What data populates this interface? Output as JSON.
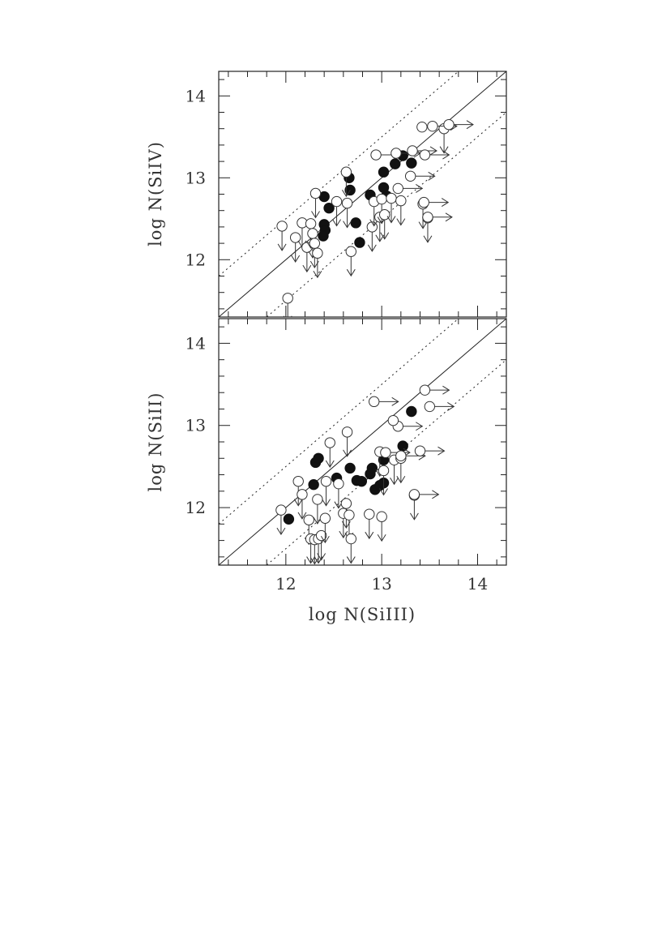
{
  "chart_data": [
    {
      "type": "scatter",
      "xlabel": "log  N(SiIII)",
      "ylabel": "log  N(SiIV)",
      "xlim": [
        11.3,
        14.3
      ],
      "ylim": [
        11.3,
        14.3
      ],
      "xticks": [
        "12",
        "13",
        "14"
      ],
      "yticks": [
        "12",
        "13",
        "14"
      ],
      "reference_lines": [
        {
          "style": "solid",
          "offset": 0.0
        },
        {
          "style": "dotted",
          "offset": 0.5
        },
        {
          "style": "dotted",
          "offset": -0.5
        }
      ],
      "series": [
        {
          "marker": "filled-circle",
          "points": [
            {
              "x": 12.4,
              "y": 12.77
            },
            {
              "x": 12.45,
              "y": 12.63
            },
            {
              "x": 12.4,
              "y": 12.43
            },
            {
              "x": 12.41,
              "y": 12.36
            },
            {
              "x": 12.39,
              "y": 12.29
            },
            {
              "x": 12.66,
              "y": 13.0
            },
            {
              "x": 12.67,
              "y": 12.85
            },
            {
              "x": 12.73,
              "y": 12.45
            },
            {
              "x": 12.77,
              "y": 12.21
            },
            {
              "x": 12.88,
              "y": 12.79
            },
            {
              "x": 13.02,
              "y": 13.07
            },
            {
              "x": 13.02,
              "y": 12.88
            },
            {
              "x": 13.05,
              "y": 12.78
            },
            {
              "x": 13.14,
              "y": 13.17
            },
            {
              "x": 13.22,
              "y": 13.27
            },
            {
              "x": 13.31,
              "y": 13.18
            }
          ]
        },
        {
          "marker": "open-circle",
          "points": [
            {
              "x": 11.96,
              "y": 12.41,
              "limit": "down"
            },
            {
              "x": 12.02,
              "y": 11.53,
              "limit": "down"
            },
            {
              "x": 12.1,
              "y": 12.27,
              "limit": "down"
            },
            {
              "x": 12.17,
              "y": 12.45,
              "limit": "down"
            },
            {
              "x": 12.22,
              "y": 12.15,
              "limit": "down"
            },
            {
              "x": 12.26,
              "y": 12.44,
              "limit": "down"
            },
            {
              "x": 12.28,
              "y": 12.32,
              "limit": "down"
            },
            {
              "x": 12.3,
              "y": 12.2,
              "limit": "down"
            },
            {
              "x": 12.33,
              "y": 12.08,
              "limit": "down"
            },
            {
              "x": 12.31,
              "y": 12.81,
              "limit": "down"
            },
            {
              "x": 12.53,
              "y": 12.71,
              "limit": "down"
            },
            {
              "x": 12.63,
              "y": 13.07,
              "limit": "down"
            },
            {
              "x": 12.64,
              "y": 12.69,
              "limit": "down"
            },
            {
              "x": 12.68,
              "y": 12.1,
              "limit": "down"
            },
            {
              "x": 12.9,
              "y": 12.4,
              "limit": "down"
            },
            {
              "x": 12.92,
              "y": 12.71,
              "limit": "down"
            },
            {
              "x": 12.98,
              "y": 12.52,
              "limit": "down"
            },
            {
              "x": 13.0,
              "y": 12.74,
              "limit": "down"
            },
            {
              "x": 13.03,
              "y": 12.55,
              "limit": "down"
            },
            {
              "x": 13.1,
              "y": 12.75,
              "limit": "down"
            },
            {
              "x": 13.2,
              "y": 12.72,
              "limit": "down"
            },
            {
              "x": 13.43,
              "y": 12.68,
              "limit": "down"
            },
            {
              "x": 13.48,
              "y": 12.51,
              "limit": "down"
            },
            {
              "x": 13.65,
              "y": 13.6,
              "limit": "down"
            },
            {
              "x": 12.94,
              "y": 13.28,
              "limit": "right"
            },
            {
              "x": 13.15,
              "y": 13.3,
              "limit": "right"
            },
            {
              "x": 13.17,
              "y": 12.87,
              "limit": "right"
            },
            {
              "x": 13.3,
              "y": 13.02,
              "limit": "right"
            },
            {
              "x": 13.32,
              "y": 13.33,
              "limit": "right"
            },
            {
              "x": 13.45,
              "y": 13.28,
              "limit": "right"
            },
            {
              "x": 13.53,
              "y": 13.63,
              "limit": "right"
            },
            {
              "x": 13.7,
              "y": 13.65,
              "limit": "right"
            },
            {
              "x": 13.44,
              "y": 12.7,
              "limit": "right"
            },
            {
              "x": 13.48,
              "y": 12.52,
              "limit": "right"
            },
            {
              "x": 13.42,
              "y": 13.62,
              "limit": "none"
            }
          ]
        }
      ]
    },
    {
      "type": "scatter",
      "xlabel": "log  N(SiIII)",
      "ylabel": "log  N(SiII)",
      "xlim": [
        11.3,
        14.3
      ],
      "ylim": [
        11.3,
        14.3
      ],
      "xticks": [
        "12",
        "13",
        "14"
      ],
      "yticks": [
        "12",
        "13",
        "14"
      ],
      "reference_lines": [
        {
          "style": "solid",
          "offset": 0.0
        },
        {
          "style": "dotted",
          "offset": 0.5
        },
        {
          "style": "dotted",
          "offset": -0.5
        }
      ],
      "series": [
        {
          "marker": "filled-circle",
          "points": [
            {
              "x": 12.03,
              "y": 11.86
            },
            {
              "x": 12.29,
              "y": 12.28
            },
            {
              "x": 12.31,
              "y": 12.55
            },
            {
              "x": 12.34,
              "y": 12.6
            },
            {
              "x": 12.53,
              "y": 12.36
            },
            {
              "x": 12.67,
              "y": 12.48
            },
            {
              "x": 12.74,
              "y": 12.33
            },
            {
              "x": 12.79,
              "y": 12.32
            },
            {
              "x": 12.88,
              "y": 12.41
            },
            {
              "x": 12.9,
              "y": 12.48
            },
            {
              "x": 12.93,
              "y": 12.22
            },
            {
              "x": 12.98,
              "y": 12.27
            },
            {
              "x": 13.02,
              "y": 12.3
            },
            {
              "x": 13.02,
              "y": 12.58
            },
            {
              "x": 13.22,
              "y": 12.75
            },
            {
              "x": 13.31,
              "y": 13.17
            }
          ]
        },
        {
          "marker": "open-circle",
          "points": [
            {
              "x": 11.95,
              "y": 11.97,
              "limit": "down"
            },
            {
              "x": 12.13,
              "y": 12.32,
              "limit": "down"
            },
            {
              "x": 12.17,
              "y": 12.16,
              "limit": "down"
            },
            {
              "x": 12.24,
              "y": 11.85,
              "limit": "down"
            },
            {
              "x": 12.26,
              "y": 11.62,
              "limit": "down"
            },
            {
              "x": 12.3,
              "y": 11.61,
              "limit": "down"
            },
            {
              "x": 12.33,
              "y": 12.1,
              "limit": "down"
            },
            {
              "x": 12.34,
              "y": 11.62,
              "limit": "down"
            },
            {
              "x": 12.37,
              "y": 11.66,
              "limit": "down"
            },
            {
              "x": 12.41,
              "y": 11.87,
              "limit": "down"
            },
            {
              "x": 12.42,
              "y": 12.32,
              "limit": "down"
            },
            {
              "x": 12.46,
              "y": 12.79,
              "limit": "down"
            },
            {
              "x": 12.55,
              "y": 12.29,
              "limit": "down"
            },
            {
              "x": 12.6,
              "y": 11.93,
              "limit": "down"
            },
            {
              "x": 12.63,
              "y": 12.05,
              "limit": "down"
            },
            {
              "x": 12.64,
              "y": 12.92,
              "limit": "down"
            },
            {
              "x": 12.66,
              "y": 11.91,
              "limit": "down"
            },
            {
              "x": 12.68,
              "y": 11.62,
              "limit": "down"
            },
            {
              "x": 12.87,
              "y": 11.92,
              "limit": "down"
            },
            {
              "x": 12.98,
              "y": 12.68,
              "limit": "down"
            },
            {
              "x": 13.0,
              "y": 11.89,
              "limit": "down"
            },
            {
              "x": 13.02,
              "y": 12.45,
              "limit": "down"
            },
            {
              "x": 13.13,
              "y": 12.58,
              "limit": "down"
            },
            {
              "x": 13.2,
              "y": 12.6,
              "limit": "down"
            },
            {
              "x": 13.34,
              "y": 12.15,
              "limit": "down"
            },
            {
              "x": 12.92,
              "y": 13.29,
              "limit": "right"
            },
            {
              "x": 13.04,
              "y": 12.67,
              "limit": "right"
            },
            {
              "x": 13.17,
              "y": 12.99,
              "limit": "right"
            },
            {
              "x": 13.2,
              "y": 12.63,
              "limit": "right"
            },
            {
              "x": 13.4,
              "y": 12.69,
              "limit": "right"
            },
            {
              "x": 13.45,
              "y": 13.43,
              "limit": "right"
            },
            {
              "x": 13.5,
              "y": 13.23,
              "limit": "right"
            },
            {
              "x": 13.34,
              "y": 12.16,
              "limit": "right"
            },
            {
              "x": 13.12,
              "y": 13.06,
              "limit": "none"
            }
          ]
        }
      ]
    }
  ]
}
